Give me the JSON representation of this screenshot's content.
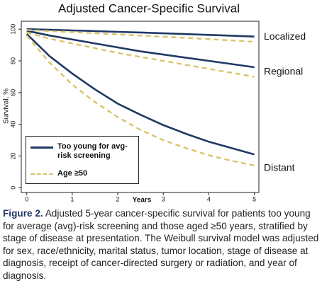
{
  "chart_data": {
    "type": "line",
    "title": "Adjusted Cancer-Specific Survival",
    "x_label": "Years",
    "y_label": "Survival, %",
    "x": [
      0,
      0.5,
      1,
      1.5,
      2,
      2.5,
      3,
      3.5,
      4,
      4.5,
      5
    ],
    "stages": [
      "Localized",
      "Regional",
      "Distant"
    ],
    "series": [
      {
        "name": "Too young for avg-risk screening",
        "color": "#1f3864",
        "dash": false,
        "values": [
          [
            100,
            99.6,
            99.2,
            98.8,
            98.3,
            97.9,
            97.4,
            96.9,
            96.4,
            95.9,
            95.3
          ],
          [
            99,
            96,
            93.5,
            91,
            88.5,
            86,
            84,
            82,
            80,
            78,
            76
          ],
          [
            97,
            83,
            72,
            62,
            53,
            46,
            39.5,
            34,
            29,
            25,
            21
          ]
        ]
      },
      {
        "name": "Age ≥50",
        "color": "#d9c46a",
        "dash": true,
        "values": [
          [
            99.5,
            98.8,
            98.1,
            97.4,
            96.7,
            96,
            95.2,
            94.5,
            93.7,
            92.9,
            92
          ],
          [
            98,
            94,
            91,
            88,
            85,
            82.5,
            80,
            77.5,
            75,
            72.5,
            70
          ],
          [
            96,
            79,
            65,
            54,
            44.5,
            36.5,
            30,
            25,
            20.5,
            17,
            14
          ]
        ]
      }
    ],
    "xlim": [
      -0.12,
      5.1
    ],
    "xticks": [
      0,
      1,
      2,
      3,
      4,
      5
    ],
    "ylim": [
      -3,
      105
    ],
    "yticks": [
      0,
      20,
      40,
      60,
      80,
      100
    ],
    "grid": false,
    "legend": "lower left",
    "caption_label": "Figure 2.",
    "caption": "Adjusted 5-year cancer-specific survival for patients too young for average (avg)-risk screening and those aged ≥50 years, stratified by stage of disease at presentation. The Weibull survival model was adjusted for sex, race/ethnicity, marital status, tumor location, stage of disease at diagnosis, receipt of cancer-directed surgery or radiation, and year of diagnosis."
  }
}
